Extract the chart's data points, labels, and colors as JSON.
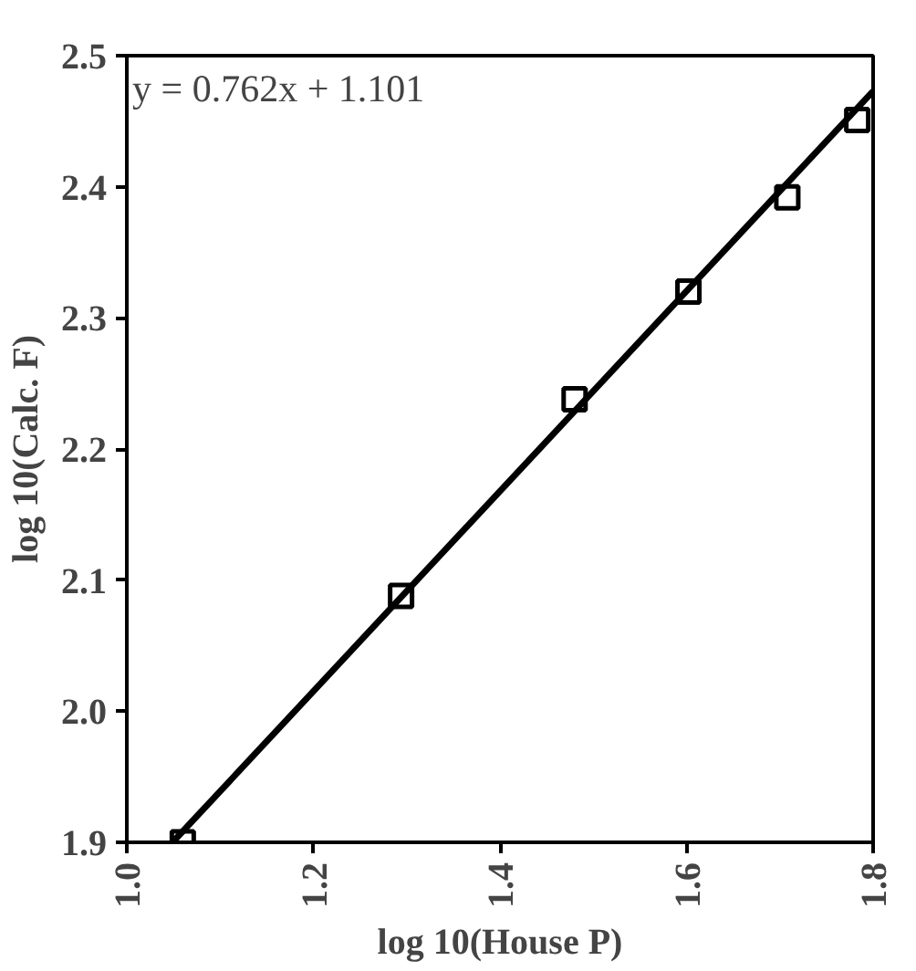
{
  "chart_data": {
    "type": "scatter",
    "xlabel": "log 10(House P)",
    "ylabel": "log 10(Calc. F)",
    "annotations": [
      "y = 0.762x + 1.101"
    ],
    "series": [
      {
        "color": "#000000",
        "marker": "square",
        "x": [
          1.06,
          1.294,
          1.48,
          1.602,
          1.708,
          1.783
        ],
        "values": [
          1.9,
          2.088,
          2.238,
          2.32,
          2.392,
          2.451
        ]
      },
      {
        "type": "line",
        "color": "#000000",
        "x": [
          1.049,
          1.8
        ],
        "values": [
          1.9,
          2.473
        ]
      }
    ],
    "xlim": [
      1.0,
      1.8
    ],
    "ylim": [
      1.9,
      2.5
    ],
    "xticks": [
      {
        "value": 1.0,
        "label": "1.0"
      },
      1.2,
      1.4,
      1.6,
      1.8
    ],
    "yticks": [
      1.9,
      {
        "value": 2.0,
        "label": "2.0"
      },
      2.1,
      2.2,
      2.3,
      2.4,
      2.5
    ],
    "grid": false
  }
}
